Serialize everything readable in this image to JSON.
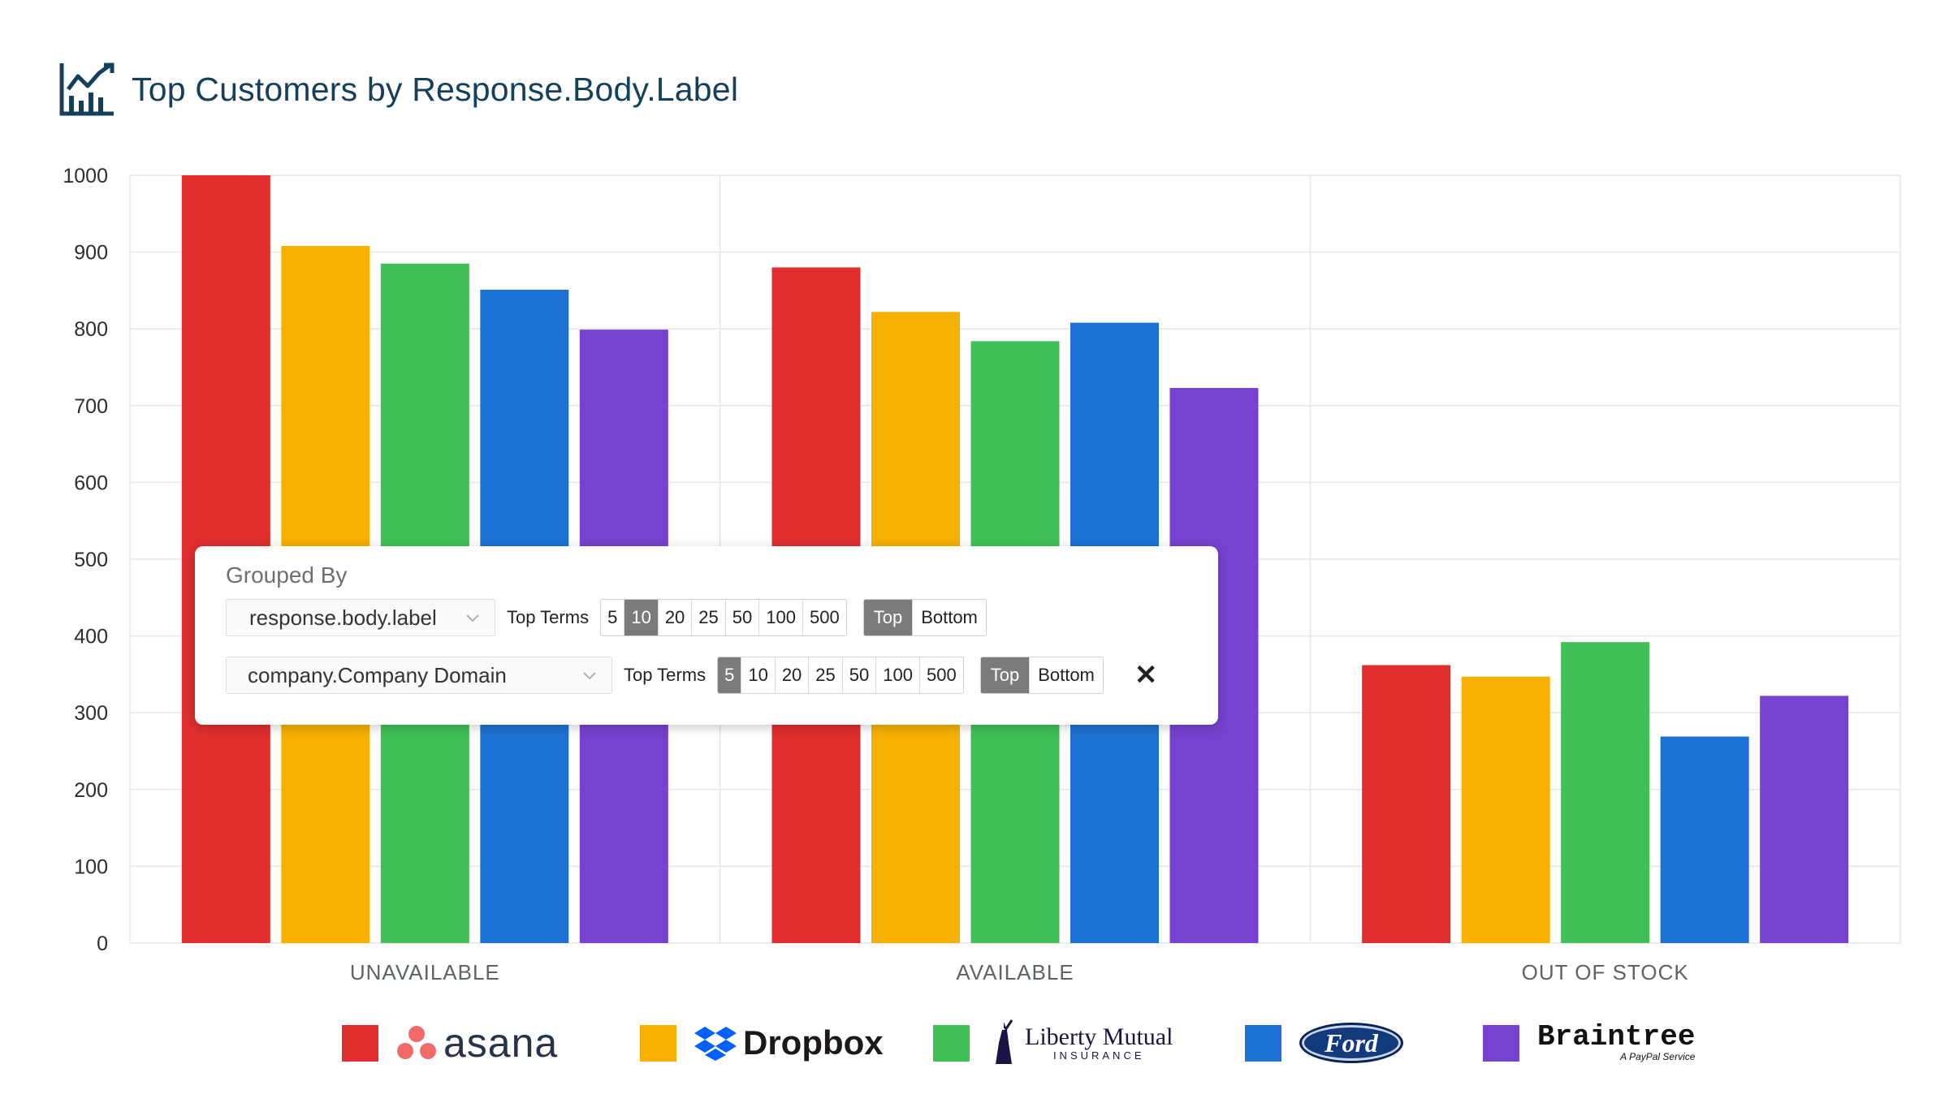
{
  "title": "Top Customers by Response.Body.Label",
  "colors": {
    "title": "#14405a",
    "series": [
      "#e02e2e",
      "#f7b000",
      "#40c057",
      "#1c72d2",
      "#7742cf"
    ]
  },
  "chart_data": {
    "type": "bar",
    "title": "Top Customers by Response.Body.Label",
    "categories": [
      "UNAVAILABLE",
      "AVAILABLE",
      "OUT OF STOCK"
    ],
    "series": [
      {
        "name": "asana",
        "values": [
          1000,
          880,
          362
        ]
      },
      {
        "name": "Dropbox",
        "values": [
          908,
          822,
          347
        ]
      },
      {
        "name": "Liberty Mutual Insurance",
        "values": [
          885,
          784,
          392
        ]
      },
      {
        "name": "Ford",
        "values": [
          851,
          808,
          269
        ]
      },
      {
        "name": "Braintree",
        "values": [
          799,
          723,
          322
        ]
      }
    ],
    "ylim": [
      0,
      1000
    ],
    "yticks": [
      0,
      100,
      200,
      300,
      400,
      500,
      600,
      700,
      800,
      900,
      1000
    ],
    "grid": true,
    "legend_position": "bottom"
  },
  "legend": {
    "asana": "asana",
    "dropbox": "Dropbox",
    "liberty": "Liberty Mutual",
    "liberty_sub": "INSURANCE",
    "ford": "Ford",
    "braintree": "Braintree",
    "braintree_sub": "A PayPal Service"
  },
  "grouping": {
    "heading": "Grouped By",
    "rows": [
      {
        "field": "response.body.label",
        "terms_label": "Top Terms",
        "options": [
          "5",
          "10",
          "20",
          "25",
          "50",
          "100",
          "500"
        ],
        "selected": "10",
        "order": [
          "Top",
          "Bottom"
        ],
        "order_selected": "Top"
      },
      {
        "field": "company.Company Domain",
        "terms_label": "Top Terms",
        "options": [
          "5",
          "10",
          "20",
          "25",
          "50",
          "100",
          "500"
        ],
        "selected": "5",
        "order": [
          "Top",
          "Bottom"
        ],
        "order_selected": "Top"
      }
    ],
    "close_glyph": "✕"
  }
}
